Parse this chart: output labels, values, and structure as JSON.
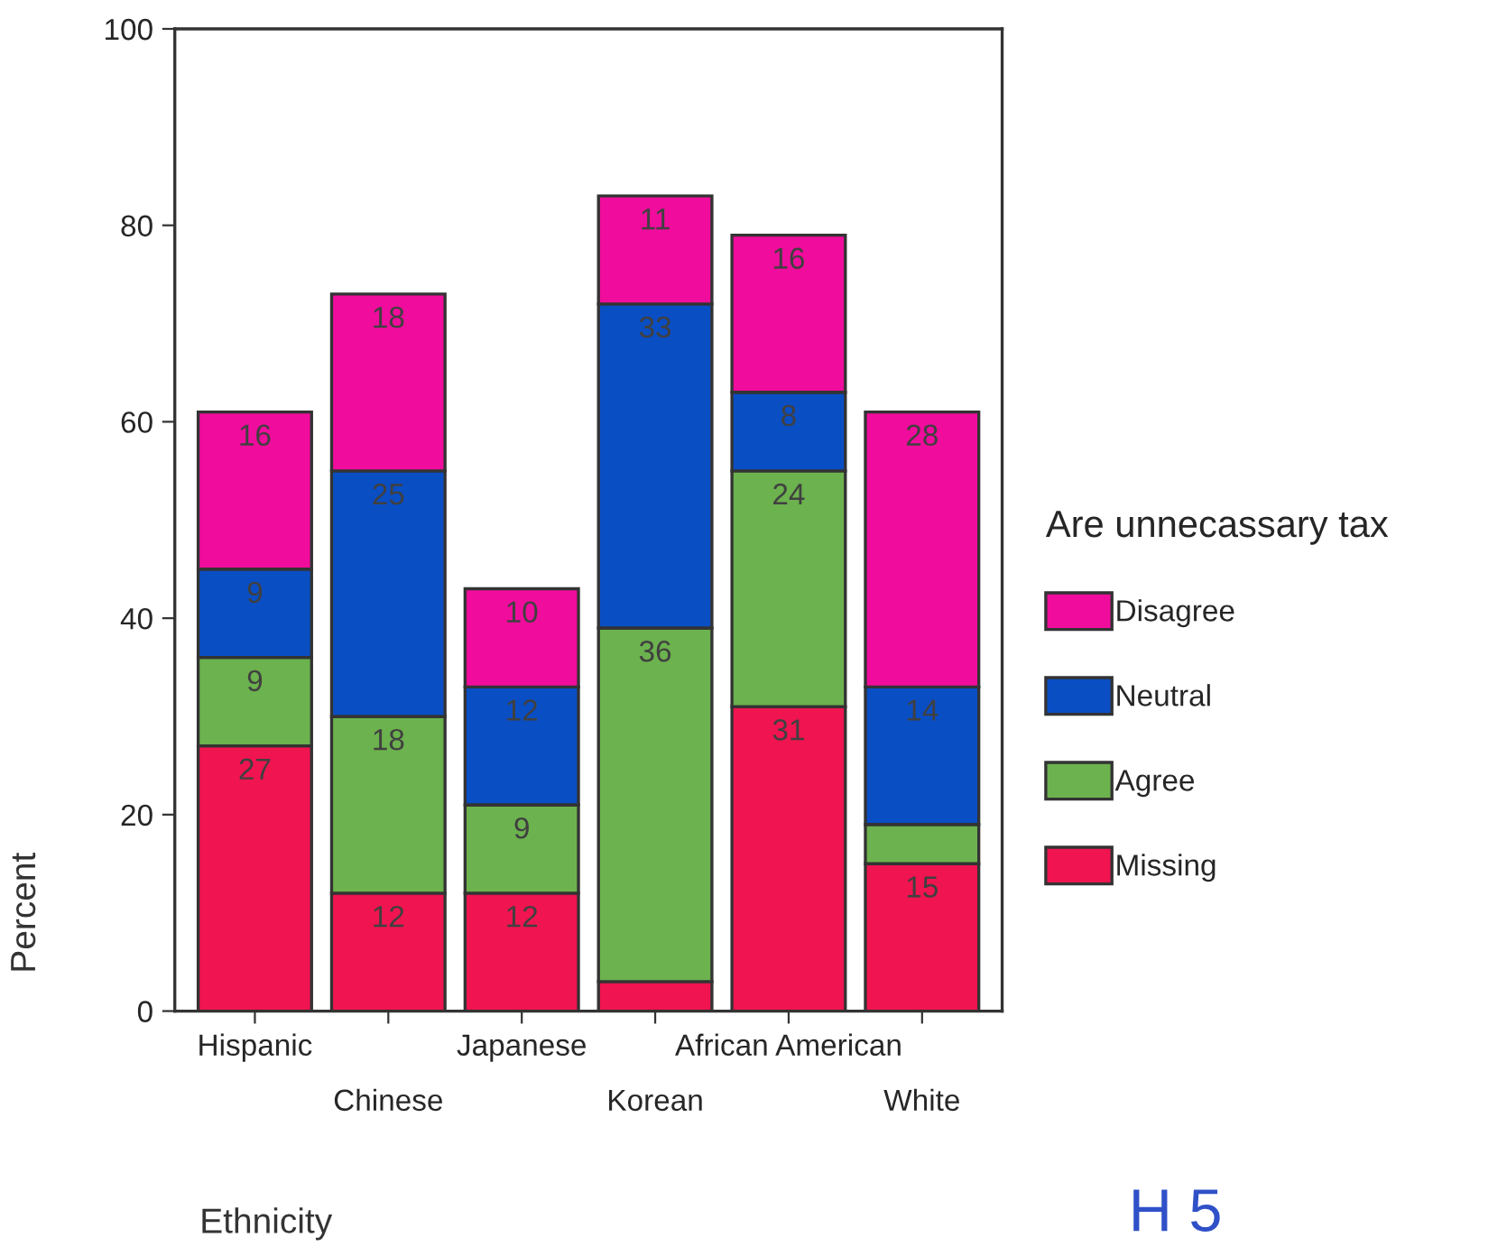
{
  "chart_data": {
    "type": "bar",
    "stacked": true,
    "xlabel": "Ethnicity",
    "ylabel": "Percent",
    "legend_title": "Are unnecassary tax",
    "categories": [
      "Hispanic",
      "Chinese",
      "Japanese",
      "Korean",
      "African American",
      "White"
    ],
    "series": [
      {
        "name": "Missing",
        "color": "#f01450",
        "values": [
          27,
          12,
          12,
          3,
          31,
          15
        ],
        "value_labels": [
          "27",
          "12",
          "12",
          null,
          "31",
          "15"
        ]
      },
      {
        "name": "Agree",
        "color": "#6cb24e",
        "values": [
          9,
          18,
          9,
          36,
          24,
          4
        ],
        "value_labels": [
          "9",
          "18",
          "9",
          "36",
          "24",
          null
        ]
      },
      {
        "name": "Neutral",
        "color": "#0a4ec4",
        "values": [
          9,
          25,
          12,
          33,
          8,
          14
        ],
        "value_labels": [
          "9",
          "25",
          "12",
          "33",
          "8",
          "14"
        ]
      },
      {
        "name": "Disagree",
        "color": "#f00c9c",
        "values": [
          16,
          18,
          10,
          11,
          16,
          28
        ],
        "value_labels": [
          "16",
          "18",
          "10",
          "11",
          "16",
          "28"
        ]
      }
    ],
    "ylim": [
      0,
      100
    ],
    "yticks": [
      0,
      20,
      40,
      60,
      80,
      100
    ],
    "grid": false,
    "legend": "right",
    "annotations": [
      "H 5"
    ]
  }
}
